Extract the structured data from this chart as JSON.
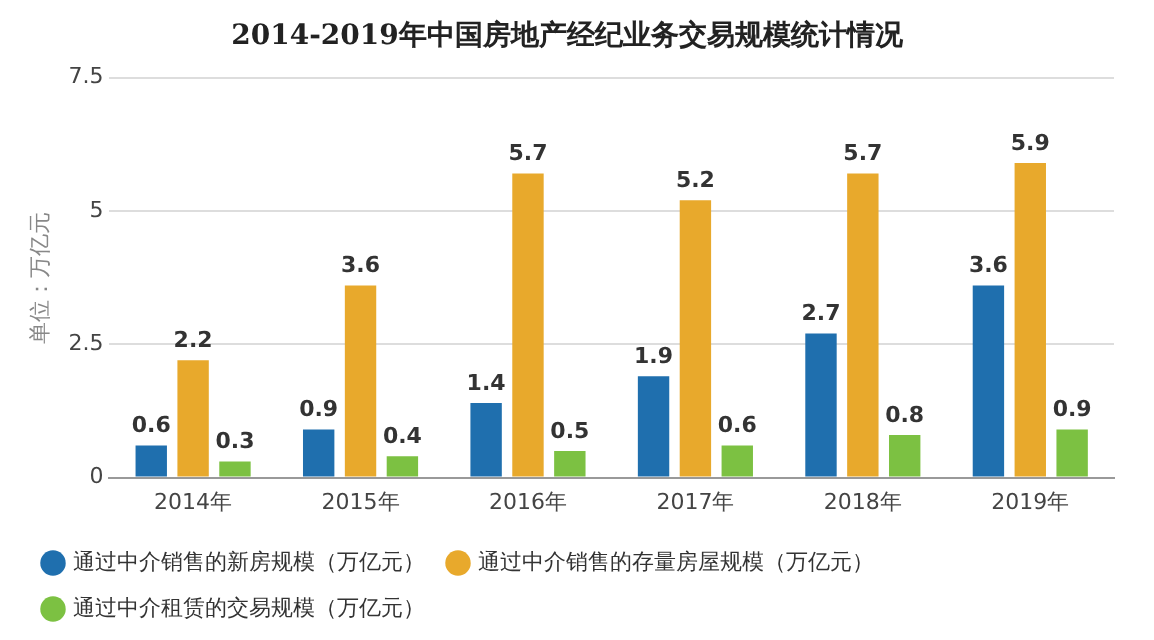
{
  "chart_data": {
    "type": "bar",
    "title": "2014-2019年中国房地产经纪业务交易规模统计情况",
    "ylabel": "单位：万亿元",
    "categories": [
      "2014年",
      "2015年",
      "2016年",
      "2017年",
      "2018年",
      "2019年"
    ],
    "series": [
      {
        "name": "通过中介销售的新房规模（万亿元）",
        "color": "#1f6fae",
        "values": [
          0.6,
          0.9,
          1.4,
          1.9,
          2.7,
          3.6
        ]
      },
      {
        "name": "通过中介销售的存量房屋规模（万亿元）",
        "color": "#e8a92c",
        "values": [
          2.2,
          3.6,
          5.7,
          5.2,
          5.7,
          5.9
        ]
      },
      {
        "name": "通过中介租赁的交易规模（万亿元）",
        "color": "#7cc142",
        "values": [
          0.3,
          0.4,
          0.5,
          0.6,
          0.8,
          0.9
        ]
      }
    ],
    "ylim": [
      0,
      7.5
    ],
    "yticks": [
      0,
      2.5,
      5,
      7.5
    ],
    "grid": "y",
    "legend": "bottom",
    "marker": "circle",
    "data_labels": true
  }
}
